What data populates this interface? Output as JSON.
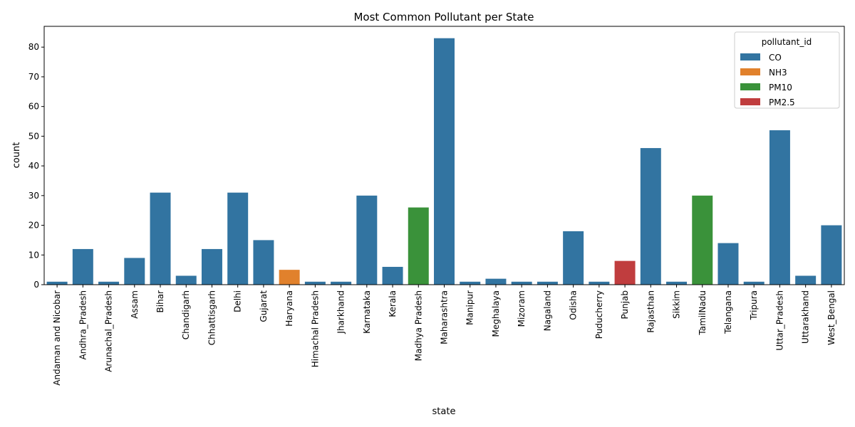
{
  "chart_data": {
    "type": "bar",
    "title": "Most Common Pollutant per State",
    "xlabel": "state",
    "ylabel": "count",
    "ylim": [
      0,
      87
    ],
    "yticks": [
      0,
      10,
      20,
      30,
      40,
      50,
      60,
      70,
      80
    ],
    "grid": false,
    "legend": {
      "title": "pollutant_id",
      "placement": "top-right",
      "entries": [
        {
          "name": "CO",
          "color": "#3274a1"
        },
        {
          "name": "NH3",
          "color": "#e1812c"
        },
        {
          "name": "PM10",
          "color": "#3a923a"
        },
        {
          "name": "PM2.5",
          "color": "#c03d3e"
        }
      ]
    },
    "categories": [
      "Andaman and Nicobar",
      "Andhra_Pradesh",
      "Arunachal_Pradesh",
      "Assam",
      "Bihar",
      "Chandigarh",
      "Chhattisgarh",
      "Delhi",
      "Gujarat",
      "Haryana",
      "Himachal Pradesh",
      "Jharkhand",
      "Karnataka",
      "Kerala",
      "Madhya Pradesh",
      "Maharashtra",
      "Manipur",
      "Meghalaya",
      "Mizoram",
      "Nagaland",
      "Odisha",
      "Puducherry",
      "Punjab",
      "Rajasthan",
      "Sikkim",
      "TamilNadu",
      "Telangana",
      "Tripura",
      "Uttar_Pradesh",
      "Uttarakhand",
      "West_Bengal"
    ],
    "values": [
      1,
      12,
      1,
      9,
      31,
      3,
      12,
      31,
      15,
      5,
      1,
      1,
      30,
      6,
      26,
      83,
      1,
      2,
      1,
      1,
      18,
      1,
      8,
      46,
      1,
      30,
      14,
      1,
      52,
      3,
      20
    ],
    "pollutant": [
      "CO",
      "CO",
      "CO",
      "CO",
      "CO",
      "CO",
      "CO",
      "CO",
      "CO",
      "NH3",
      "CO",
      "CO",
      "CO",
      "CO",
      "PM10",
      "CO",
      "CO",
      "CO",
      "CO",
      "CO",
      "CO",
      "CO",
      "PM2.5",
      "CO",
      "CO",
      "PM10",
      "CO",
      "CO",
      "CO",
      "CO",
      "CO"
    ]
  }
}
